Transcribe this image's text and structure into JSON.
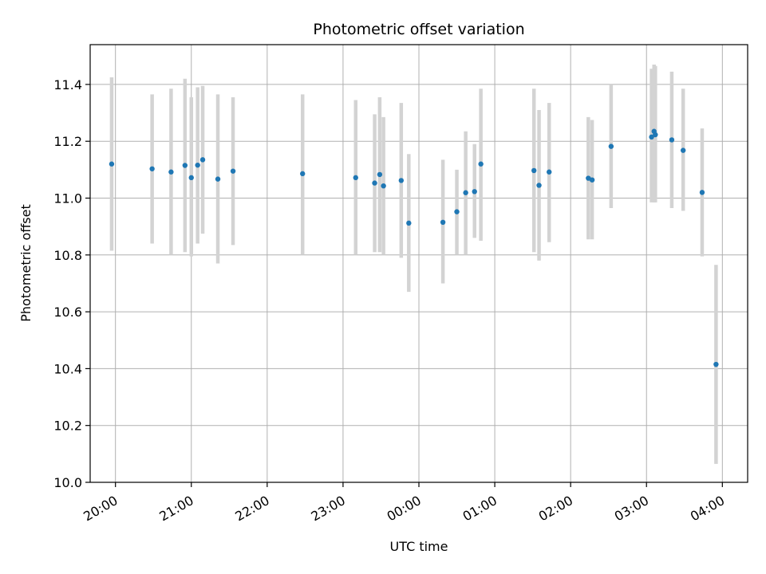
{
  "chart_data": {
    "type": "scatter",
    "title": "Photometric offset variation",
    "xlabel": "UTC time",
    "ylabel": "Photometric offset",
    "x_axis": "UTC time of day (hours after 20:00 on first night; values past 24 wrap to next day)",
    "xlim_labels": [
      "19:40",
      "04:20"
    ],
    "ylim": [
      10.0,
      11.54
    ],
    "yticks": [
      10.0,
      10.2,
      10.4,
      10.6,
      10.8,
      11.0,
      11.2,
      11.4
    ],
    "ytick_labels": [
      "10.0",
      "10.2",
      "10.4",
      "10.6",
      "10.8",
      "11.0",
      "11.2",
      "11.4"
    ],
    "xtick_labels": [
      "20:00",
      "21:00",
      "22:00",
      "23:00",
      "00:00",
      "01:00",
      "02:00",
      "03:00",
      "04:00"
    ],
    "grid": true,
    "colors": {
      "point": "#1f77b4",
      "errorbar": "#d3d3d3",
      "grid": "#b0b0b0"
    },
    "points": [
      {
        "t": "19:57",
        "y": 11.12,
        "lo": 10.815,
        "hi": 11.425
      },
      {
        "t": "20:29",
        "y": 11.103,
        "lo": 10.84,
        "hi": 11.365
      },
      {
        "t": "20:44",
        "y": 11.092,
        "lo": 10.8,
        "hi": 11.385
      },
      {
        "t": "20:55",
        "y": 11.115,
        "lo": 10.81,
        "hi": 11.42
      },
      {
        "t": "21:00",
        "y": 11.072,
        "lo": 10.795,
        "hi": 11.355
      },
      {
        "t": "21:05",
        "y": 11.116,
        "lo": 10.84,
        "hi": 11.39
      },
      {
        "t": "21:09",
        "y": 11.135,
        "lo": 10.875,
        "hi": 11.395
      },
      {
        "t": "21:21",
        "y": 11.067,
        "lo": 10.77,
        "hi": 11.365
      },
      {
        "t": "21:33",
        "y": 11.095,
        "lo": 10.835,
        "hi": 11.355
      },
      {
        "t": "22:28",
        "y": 11.086,
        "lo": 10.8,
        "hi": 11.365
      },
      {
        "t": "23:10",
        "y": 11.072,
        "lo": 10.8,
        "hi": 11.345
      },
      {
        "t": "23:25",
        "y": 11.053,
        "lo": 10.81,
        "hi": 11.295
      },
      {
        "t": "23:29",
        "y": 11.083,
        "lo": 10.81,
        "hi": 11.355
      },
      {
        "t": "23:32",
        "y": 11.043,
        "lo": 10.8,
        "hi": 11.285
      },
      {
        "t": "23:46",
        "y": 11.062,
        "lo": 10.79,
        "hi": 11.335
      },
      {
        "t": "23:52",
        "y": 10.912,
        "lo": 10.67,
        "hi": 11.155
      },
      {
        "t": "00:19",
        "y": 10.915,
        "lo": 10.7,
        "hi": 11.135
      },
      {
        "t": "00:30",
        "y": 10.952,
        "lo": 10.8,
        "hi": 11.1
      },
      {
        "t": "00:37",
        "y": 11.019,
        "lo": 10.8,
        "hi": 11.235
      },
      {
        "t": "00:44",
        "y": 11.023,
        "lo": 10.86,
        "hi": 11.19
      },
      {
        "t": "00:49",
        "y": 11.12,
        "lo": 10.85,
        "hi": 11.385
      },
      {
        "t": "01:31",
        "y": 11.097,
        "lo": 10.81,
        "hi": 11.385
      },
      {
        "t": "01:35",
        "y": 11.045,
        "lo": 10.78,
        "hi": 11.31
      },
      {
        "t": "01:43",
        "y": 11.092,
        "lo": 10.845,
        "hi": 11.335
      },
      {
        "t": "02:14",
        "y": 11.07,
        "lo": 10.855,
        "hi": 11.285
      },
      {
        "t": "02:17",
        "y": 11.064,
        "lo": 10.855,
        "hi": 11.275
      },
      {
        "t": "02:32",
        "y": 11.182,
        "lo": 10.965,
        "hi": 11.4
      },
      {
        "t": "03:04",
        "y": 11.215,
        "lo": 10.985,
        "hi": 11.455
      },
      {
        "t": "03:06",
        "y": 11.235,
        "lo": 10.985,
        "hi": 11.47
      },
      {
        "t": "03:07",
        "y": 11.223,
        "lo": 10.985,
        "hi": 11.465
      },
      {
        "t": "03:20",
        "y": 11.205,
        "lo": 10.965,
        "hi": 11.445
      },
      {
        "t": "03:29",
        "y": 11.168,
        "lo": 10.955,
        "hi": 11.385
      },
      {
        "t": "03:44",
        "y": 11.02,
        "lo": 10.795,
        "hi": 11.245
      },
      {
        "t": "03:55",
        "y": 10.415,
        "lo": 10.065,
        "hi": 10.765
      }
    ]
  }
}
